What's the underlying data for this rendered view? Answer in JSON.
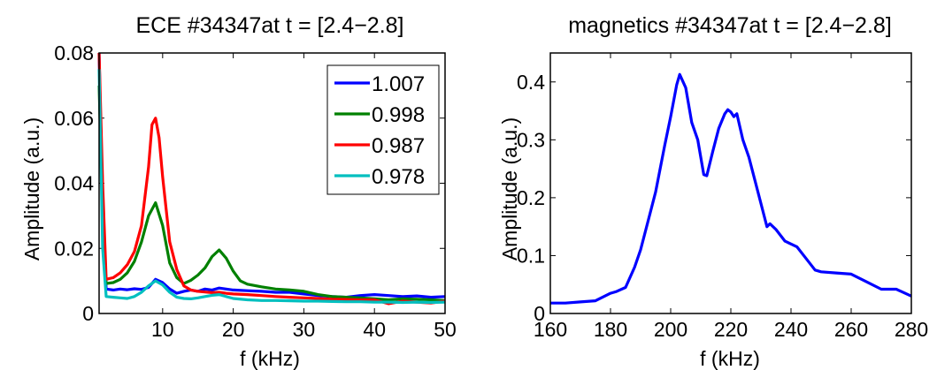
{
  "chart_data": [
    {
      "type": "line",
      "title": "ECE #34347at t = [2.4−2.8]",
      "xlabel": "f (kHz)",
      "ylabel": "Amplitude (a.u.)",
      "xlim": [
        1,
        50
      ],
      "ylim": [
        0,
        0.08
      ],
      "xticks": [
        10,
        20,
        30,
        40,
        50
      ],
      "xtick_labels": [
        "10",
        "20",
        "30",
        "40",
        "50"
      ],
      "yticks": [
        0,
        0.02,
        0.04,
        0.06,
        0.08
      ],
      "ytick_labels": [
        "0",
        "0.02",
        "0.04",
        "0.06",
        "0.08"
      ],
      "grid": false,
      "legend": "top-right",
      "series": [
        {
          "name": "1.007",
          "color": "#0000ff",
          "x": [
            1,
            1.5,
            2,
            3,
            4,
            5,
            6,
            7,
            8,
            9,
            10,
            11,
            12,
            13,
            14,
            15,
            16,
            17,
            18,
            19,
            20,
            22,
            24,
            26,
            28,
            30,
            32,
            34,
            36,
            38,
            40,
            42,
            44,
            46,
            48,
            50
          ],
          "y": [
            0.08,
            0.03,
            0.0075,
            0.0072,
            0.0075,
            0.0073,
            0.0076,
            0.0074,
            0.008,
            0.0105,
            0.0095,
            0.0075,
            0.0062,
            0.0068,
            0.0072,
            0.0068,
            0.0075,
            0.0072,
            0.0078,
            0.0075,
            0.0072,
            0.007,
            0.0068,
            0.0065,
            0.0065,
            0.006,
            0.0055,
            0.0052,
            0.005,
            0.0055,
            0.0058,
            0.0055,
            0.0052,
            0.0054,
            0.005,
            0.0052
          ]
        },
        {
          "name": "0.998",
          "color": "#008000",
          "x": [
            1,
            1.5,
            2,
            3,
            4,
            5,
            6,
            7,
            8,
            9,
            10,
            11,
            12,
            13,
            14,
            15,
            16,
            17,
            18,
            19,
            20,
            21,
            22,
            24,
            26,
            28,
            30,
            32,
            34,
            36,
            38,
            40,
            42,
            44,
            46,
            48,
            50
          ],
          "y": [
            0.07,
            0.03,
            0.0092,
            0.0095,
            0.0105,
            0.0125,
            0.016,
            0.022,
            0.03,
            0.034,
            0.027,
            0.0155,
            0.011,
            0.0092,
            0.0102,
            0.0118,
            0.014,
            0.0175,
            0.0195,
            0.017,
            0.013,
            0.01,
            0.009,
            0.0082,
            0.0075,
            0.0072,
            0.0068,
            0.0058,
            0.0052,
            0.005,
            0.0048,
            0.0045,
            0.0042,
            0.0045,
            0.0044,
            0.0042,
            0.004
          ]
        },
        {
          "name": "0.987",
          "color": "#ff0000",
          "x": [
            1,
            1.5,
            2,
            3,
            4,
            5,
            6,
            7,
            8,
            8.5,
            9,
            9.5,
            10,
            11,
            12,
            13,
            14,
            15,
            16,
            17,
            18,
            19,
            20,
            22,
            24,
            26,
            28,
            30,
            32,
            34,
            36,
            38,
            40,
            42,
            44,
            46,
            48,
            50
          ],
          "y": [
            0.08,
            0.04,
            0.0105,
            0.011,
            0.0125,
            0.015,
            0.019,
            0.027,
            0.045,
            0.058,
            0.06,
            0.054,
            0.042,
            0.022,
            0.0135,
            0.0085,
            0.0072,
            0.0068,
            0.0066,
            0.0064,
            0.0065,
            0.0062,
            0.006,
            0.0058,
            0.0055,
            0.0052,
            0.005,
            0.0048,
            0.0046,
            0.0044,
            0.0043,
            0.0042,
            0.0042,
            0.003,
            0.0038,
            0.0035,
            0.0032,
            0.0038
          ]
        },
        {
          "name": "0.978",
          "color": "#00bfbf",
          "x": [
            1,
            1.5,
            2,
            3,
            4,
            5,
            6,
            7,
            8,
            9,
            10,
            11,
            12,
            13,
            14,
            15,
            16,
            17,
            18,
            19,
            20,
            22,
            24,
            26,
            28,
            30,
            32,
            34,
            36,
            38,
            40,
            42,
            44,
            46,
            48,
            50
          ],
          "y": [
            0.075,
            0.02,
            0.0052,
            0.005,
            0.0048,
            0.0046,
            0.0052,
            0.0065,
            0.0085,
            0.01,
            0.0088,
            0.0065,
            0.005,
            0.0046,
            0.0045,
            0.0048,
            0.0052,
            0.0056,
            0.0058,
            0.0052,
            0.0046,
            0.0042,
            0.004,
            0.004,
            0.0039,
            0.0038,
            0.0038,
            0.0037,
            0.0036,
            0.0036,
            0.0035,
            0.0035,
            0.0034,
            0.0035,
            0.0034,
            0.0035
          ]
        }
      ]
    },
    {
      "type": "line",
      "title": "magnetics #34347at t = [2.4−2.8]",
      "xlabel": "f (kHz)",
      "ylabel": "Amplitude (a.u.)",
      "xlim": [
        160,
        280
      ],
      "ylim": [
        0,
        0.45
      ],
      "xticks": [
        160,
        180,
        200,
        220,
        240,
        260,
        280
      ],
      "xtick_labels": [
        "160",
        "180",
        "200",
        "220",
        "240",
        "260",
        "280"
      ],
      "yticks": [
        0,
        0.1,
        0.2,
        0.3,
        0.4
      ],
      "ytick_labels": [
        "0",
        "0.1",
        "0.2",
        "0.3",
        "0.4"
      ],
      "grid": false,
      "series": [
        {
          "color": "#0000ff",
          "x": [
            160,
            165,
            170,
            175,
            180,
            182,
            185,
            188,
            190,
            193,
            195,
            198,
            200,
            202,
            203,
            205,
            207,
            209,
            211,
            212,
            214,
            216,
            218,
            219,
            220,
            221,
            222,
            224,
            226,
            228,
            230,
            232,
            233,
            235,
            238,
            240,
            242,
            245,
            248,
            250,
            255,
            260,
            265,
            270,
            275,
            280
          ],
          "y": [
            0.018,
            0.018,
            0.02,
            0.022,
            0.035,
            0.038,
            0.045,
            0.08,
            0.11,
            0.17,
            0.21,
            0.29,
            0.34,
            0.395,
            0.413,
            0.39,
            0.33,
            0.3,
            0.24,
            0.238,
            0.28,
            0.32,
            0.345,
            0.352,
            0.348,
            0.34,
            0.345,
            0.3,
            0.27,
            0.23,
            0.19,
            0.15,
            0.155,
            0.145,
            0.125,
            0.12,
            0.115,
            0.095,
            0.075,
            0.072,
            0.07,
            0.068,
            0.055,
            0.042,
            0.042,
            0.03
          ]
        }
      ]
    }
  ]
}
